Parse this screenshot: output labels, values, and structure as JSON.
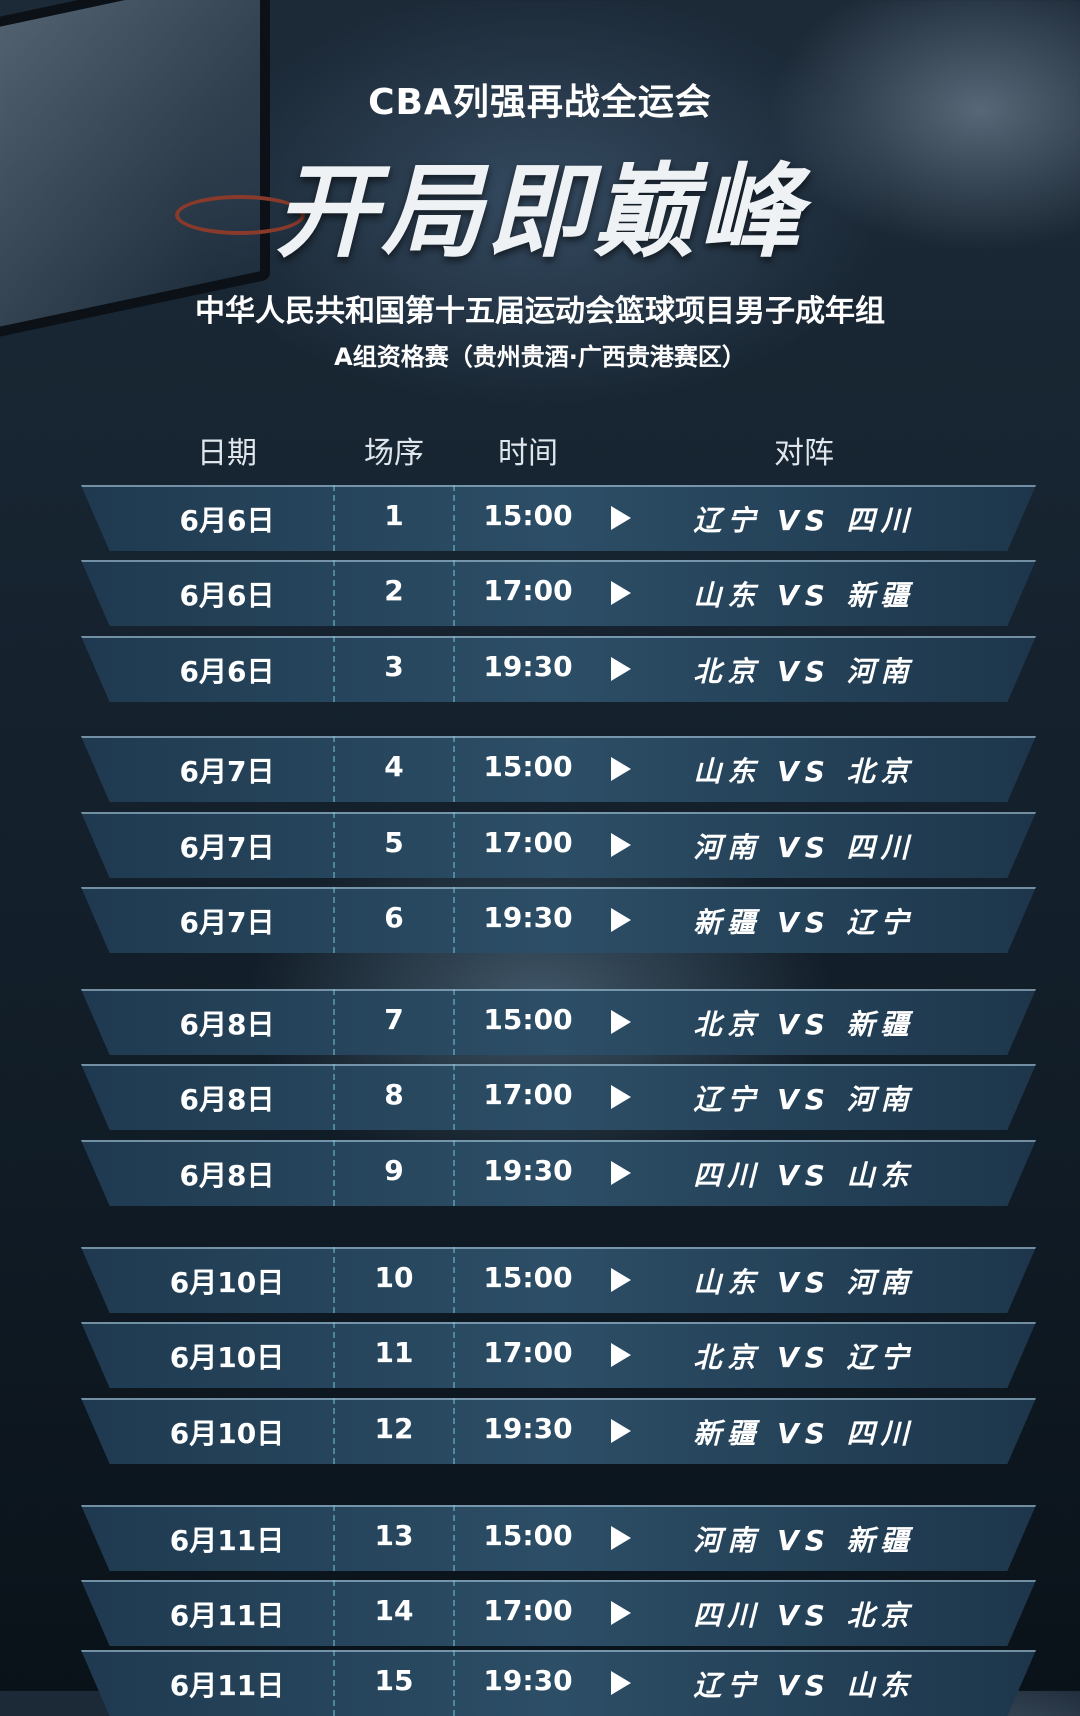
{
  "header": {
    "kicker": "CBA列强再战全运会",
    "title": "开局即巅峰",
    "subtitle": "中华人民共和国第十五届运动会篮球项目男子成年组",
    "group": "A组资格赛（贵州贵酒·广西贵港赛区）"
  },
  "table": {
    "columns": [
      "日期",
      "场序",
      "时间",
      "对阵"
    ],
    "rows": [
      {
        "date": "6月6日",
        "no": "1",
        "time": "15:00",
        "match": "辽宁 VS 四川"
      },
      {
        "date": "6月6日",
        "no": "2",
        "time": "17:00",
        "match": "山东 VS 新疆"
      },
      {
        "date": "6月6日",
        "no": "3",
        "time": "19:30",
        "match": "北京 VS 河南"
      },
      {
        "date": "6月7日",
        "no": "4",
        "time": "15:00",
        "match": "山东 VS 北京"
      },
      {
        "date": "6月7日",
        "no": "5",
        "time": "17:00",
        "match": "河南 VS 四川"
      },
      {
        "date": "6月7日",
        "no": "6",
        "time": "19:30",
        "match": "新疆 VS 辽宁"
      },
      {
        "date": "6月8日",
        "no": "7",
        "time": "15:00",
        "match": "北京 VS 新疆"
      },
      {
        "date": "6月8日",
        "no": "8",
        "time": "17:00",
        "match": "辽宁 VS 河南"
      },
      {
        "date": "6月8日",
        "no": "9",
        "time": "19:30",
        "match": "四川 VS 山东"
      },
      {
        "date": "6月10日",
        "no": "10",
        "time": "15:00",
        "match": "山东 VS 河南"
      },
      {
        "date": "6月10日",
        "no": "11",
        "time": "17:00",
        "match": "北京 VS 辽宁"
      },
      {
        "date": "6月10日",
        "no": "12",
        "time": "19:30",
        "match": "新疆 VS 四川"
      },
      {
        "date": "6月11日",
        "no": "13",
        "time": "15:00",
        "match": "河南 VS 新疆"
      },
      {
        "date": "6月11日",
        "no": "14",
        "time": "17:00",
        "match": "四川 VS 北京"
      },
      {
        "date": "6月11日",
        "no": "15",
        "time": "19:30",
        "match": "辽宁 VS 山东"
      }
    ]
  }
}
